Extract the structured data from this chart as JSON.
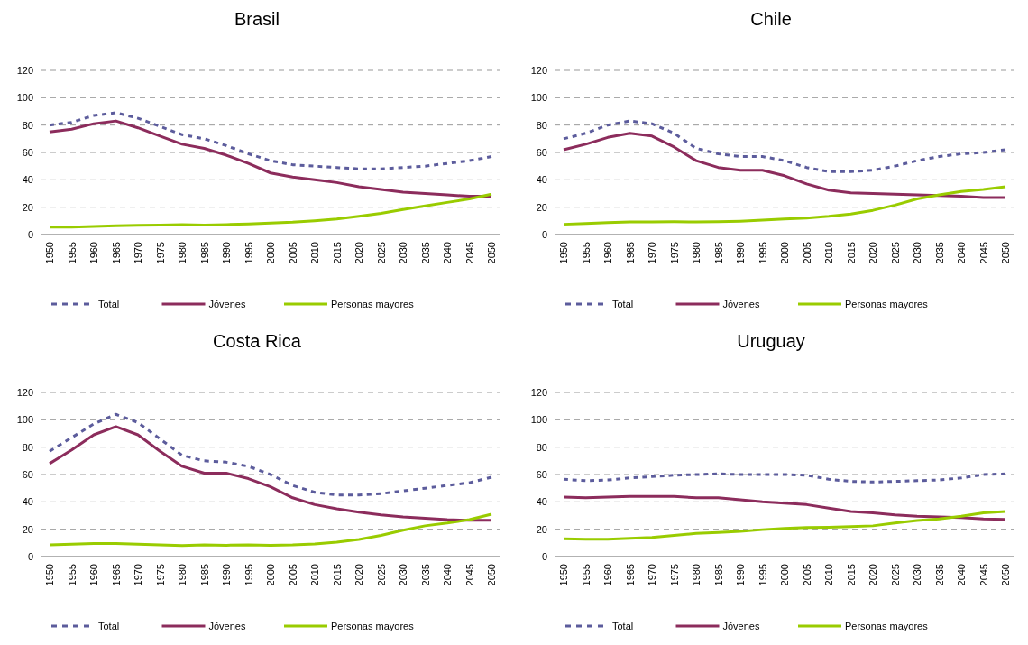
{
  "chart_data": [
    {
      "type": "line",
      "title": "Brasil",
      "categories": [
        "1950",
        "1955",
        "1960",
        "1965",
        "1970",
        "1975",
        "1980",
        "1985",
        "1990",
        "1995",
        "2000",
        "2005",
        "2010",
        "2015",
        "2020",
        "2025",
        "2030",
        "2035",
        "2040",
        "2045",
        "2050"
      ],
      "ylim": [
        0,
        120
      ],
      "yticks": [
        0,
        20,
        40,
        60,
        80,
        100,
        120
      ],
      "grid": "y",
      "legend": "bottom",
      "series": [
        {
          "name": "Total",
          "color": "#5c5c9c",
          "line_style": "dashed",
          "values": [
            80,
            82,
            87,
            89,
            85,
            79,
            73,
            70,
            65,
            59,
            54,
            51,
            50,
            49,
            48,
            48,
            49,
            50,
            52,
            54,
            57
          ]
        },
        {
          "name": "Jóvenes",
          "color": "#8c2c5c",
          "line_style": "solid",
          "values": [
            75,
            77,
            81,
            83,
            78,
            72,
            66,
            63,
            58,
            52,
            45,
            42,
            40,
            38,
            35,
            33,
            31,
            30,
            29,
            28,
            28
          ]
        },
        {
          "name": "Personas mayores",
          "color": "#99cc00",
          "line_style": "solid",
          "values": [
            5.5,
            5.5,
            6,
            6.5,
            6.7,
            7,
            7.3,
            7,
            7.3,
            7.8,
            8.4,
            9,
            10,
            11.3,
            13.3,
            15.5,
            18.3,
            21,
            23.5,
            26,
            29.5
          ]
        }
      ]
    },
    {
      "type": "line",
      "title": "Chile",
      "categories": [
        "1950",
        "1955",
        "1960",
        "1965",
        "1970",
        "1975",
        "1980",
        "1985",
        "1990",
        "1995",
        "2000",
        "2005",
        "2010",
        "2015",
        "2020",
        "2025",
        "2030",
        "2035",
        "2040",
        "2045",
        "2050"
      ],
      "ylim": [
        0,
        120
      ],
      "yticks": [
        0,
        20,
        40,
        60,
        80,
        100,
        120
      ],
      "grid": "y",
      "legend": "bottom",
      "series": [
        {
          "name": "Total",
          "color": "#5c5c9c",
          "line_style": "dashed",
          "values": [
            70,
            74,
            80,
            83,
            81,
            74,
            63,
            59,
            57,
            57,
            54,
            49,
            46,
            46,
            47,
            50,
            54,
            57,
            59,
            60,
            62
          ]
        },
        {
          "name": "Jóvenes",
          "color": "#8c2c5c",
          "line_style": "solid",
          "values": [
            62,
            66,
            71,
            74,
            72,
            64,
            54,
            49,
            47,
            47,
            43,
            37,
            32.5,
            30.5,
            30,
            29.5,
            29,
            28.5,
            28,
            27,
            27
          ]
        },
        {
          "name": "Personas mayores",
          "color": "#99cc00",
          "line_style": "solid",
          "values": [
            7.5,
            8,
            8.8,
            9.2,
            9.3,
            9.4,
            9.2,
            9.4,
            9.8,
            10.5,
            11.3,
            12,
            13.3,
            15,
            17.7,
            21.5,
            26,
            29,
            31.5,
            33,
            35
          ]
        }
      ]
    },
    {
      "type": "line",
      "title": "Costa Rica",
      "categories": [
        "1950",
        "1955",
        "1960",
        "1965",
        "1970",
        "1975",
        "1980",
        "1985",
        "1990",
        "1995",
        "2000",
        "2005",
        "2010",
        "2015",
        "2020",
        "2025",
        "2030",
        "2035",
        "2040",
        "2045",
        "2050"
      ],
      "ylim": [
        0,
        120
      ],
      "yticks": [
        0,
        20,
        40,
        60,
        80,
        100,
        120
      ],
      "grid": "y",
      "legend": "bottom",
      "series": [
        {
          "name": "Total",
          "color": "#5c5c9c",
          "line_style": "dashed",
          "values": [
            77,
            87,
            97,
            104,
            98,
            86,
            74,
            70,
            69,
            66,
            60,
            52,
            47,
            45,
            45,
            46,
            48,
            50,
            52,
            54,
            58
          ]
        },
        {
          "name": "Jóvenes",
          "color": "#8c2c5c",
          "line_style": "solid",
          "values": [
            68,
            78,
            89,
            95,
            89,
            77,
            66,
            61,
            61,
            57,
            51,
            43,
            38,
            35,
            32.5,
            30.5,
            29,
            28,
            27,
            26.5,
            26.5
          ]
        },
        {
          "name": "Personas mayores",
          "color": "#99cc00",
          "line_style": "solid",
          "values": [
            8.5,
            9,
            9.5,
            9.5,
            9,
            8.5,
            8,
            8.5,
            8.3,
            8.5,
            8.3,
            8.5,
            9.2,
            10.5,
            12.5,
            15.5,
            19.3,
            22.5,
            24.5,
            27,
            31
          ]
        }
      ]
    },
    {
      "type": "line",
      "title": "Uruguay",
      "categories": [
        "1950",
        "1955",
        "1960",
        "1965",
        "1970",
        "1975",
        "1980",
        "1985",
        "1990",
        "1995",
        "2000",
        "2005",
        "2010",
        "2015",
        "2020",
        "2025",
        "2030",
        "2035",
        "2040",
        "2045",
        "2050"
      ],
      "ylim": [
        0,
        120
      ],
      "yticks": [
        0,
        20,
        40,
        60,
        80,
        100,
        120
      ],
      "grid": "y",
      "legend": "bottom",
      "series": [
        {
          "name": "Total",
          "color": "#5c5c9c",
          "line_style": "dashed",
          "values": [
            56.5,
            55.5,
            56,
            57.5,
            58.5,
            59.5,
            60,
            60.5,
            60,
            60,
            60,
            59.5,
            56.5,
            55,
            54.5,
            55,
            55.5,
            56,
            57.5,
            60,
            60.5
          ]
        },
        {
          "name": "Jóvenes",
          "color": "#8c2c5c",
          "line_style": "solid",
          "values": [
            43.5,
            43,
            43.5,
            44,
            44,
            44,
            43,
            43,
            41.5,
            40,
            39,
            38,
            35.5,
            33,
            32,
            30.5,
            29.5,
            29,
            28.5,
            27.5,
            27.2
          ]
        },
        {
          "name": "Personas mayores",
          "color": "#99cc00",
          "line_style": "solid",
          "values": [
            13,
            12.7,
            12.7,
            13.3,
            14,
            15.5,
            17,
            17.7,
            18.5,
            19.7,
            20.6,
            21.3,
            21.5,
            22,
            22.5,
            24.5,
            26.3,
            27.5,
            29.5,
            32,
            33
          ]
        }
      ]
    }
  ]
}
